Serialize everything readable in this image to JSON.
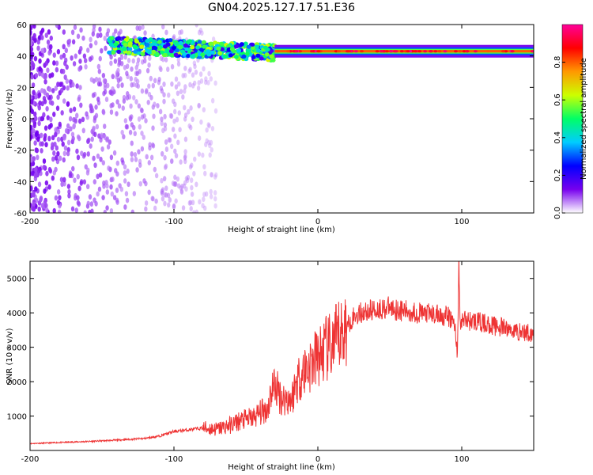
{
  "title": "GN04.2025.127.17.51.E36",
  "colors": {
    "snr_line": "#ee3333",
    "background": "#ffffff",
    "frame": "#000000"
  },
  "chart_data": [
    {
      "type": "heatmap",
      "name": "spectrogram",
      "title": "GN04.2025.127.17.51.E36",
      "xlabel": "Height of straight line (km)",
      "ylabel": "Frequency (Hz)",
      "xlim": [
        -200,
        150
      ],
      "ylim": [
        -60,
        60
      ],
      "xticks": [
        -200,
        -100,
        0,
        100
      ],
      "yticks": [
        -60,
        -40,
        -20,
        0,
        20,
        40,
        60
      ],
      "colorbar": {
        "label": "Normalized spectral amplitude",
        "range": [
          0,
          1
        ],
        "ticks": [
          0.0,
          0.2,
          0.4,
          0.6,
          0.8
        ],
        "tick_labels": [
          "0.0",
          "0.2",
          "0.4",
          "0.6",
          "0.8"
        ],
        "colormap": [
          "#ffffff",
          "#7700ee",
          "#0000ff",
          "#00ccff",
          "#00ff66",
          "#ccff00",
          "#ff9900",
          "#ff0000",
          "#ff0099"
        ]
      },
      "features": [
        {
          "description": "scattered low-amplitude noise",
          "x_range": [
            -200,
            -70
          ],
          "freq_range": [
            -60,
            60
          ],
          "amplitude": 0.05
        },
        {
          "description": "broad band",
          "x_range": [
            -145,
            -30
          ],
          "freq_center_start": 47,
          "freq_center_end": 42,
          "amplitude": 0.4
        },
        {
          "description": "narrow carrier line",
          "x_range": [
            -30,
            150
          ],
          "freq_center": 43,
          "amplitude": 0.8
        }
      ]
    },
    {
      "type": "line",
      "name": "snr",
      "xlabel": "Height of straight line (km)",
      "ylabel": "SNR (10 * v/v)",
      "xlim": [
        -200,
        150
      ],
      "ylim": [
        0,
        5500
      ],
      "xticks": [
        -200,
        -100,
        0,
        100
      ],
      "yticks": [
        1000,
        2000,
        3000,
        4000,
        5000
      ],
      "series": [
        {
          "x": [
            -200,
            -180,
            -160,
            -140,
            -120,
            -110,
            -100,
            -90,
            -80,
            -70,
            -60,
            -55,
            -50,
            -45,
            -40,
            -35,
            -32,
            -30,
            -25,
            -20,
            -18,
            -15,
            -10,
            -5,
            0,
            5,
            10,
            15,
            20,
            25,
            30,
            40,
            50,
            60,
            70,
            80,
            90,
            95,
            97,
            98,
            99,
            100,
            110,
            120,
            130,
            140,
            150
          ],
          "y": [
            200,
            230,
            260,
            300,
            350,
            420,
            550,
            600,
            650,
            620,
            750,
            850,
            900,
            950,
            1100,
            1200,
            1800,
            1900,
            1500,
            1500,
            1500,
            2000,
            2300,
            2500,
            2700,
            2900,
            3000,
            3300,
            3600,
            3900,
            4000,
            4100,
            4150,
            4050,
            4000,
            3950,
            3900,
            3700,
            2800,
            5400,
            3500,
            3800,
            3750,
            3650,
            3550,
            3450,
            3400
          ]
        }
      ]
    }
  ]
}
